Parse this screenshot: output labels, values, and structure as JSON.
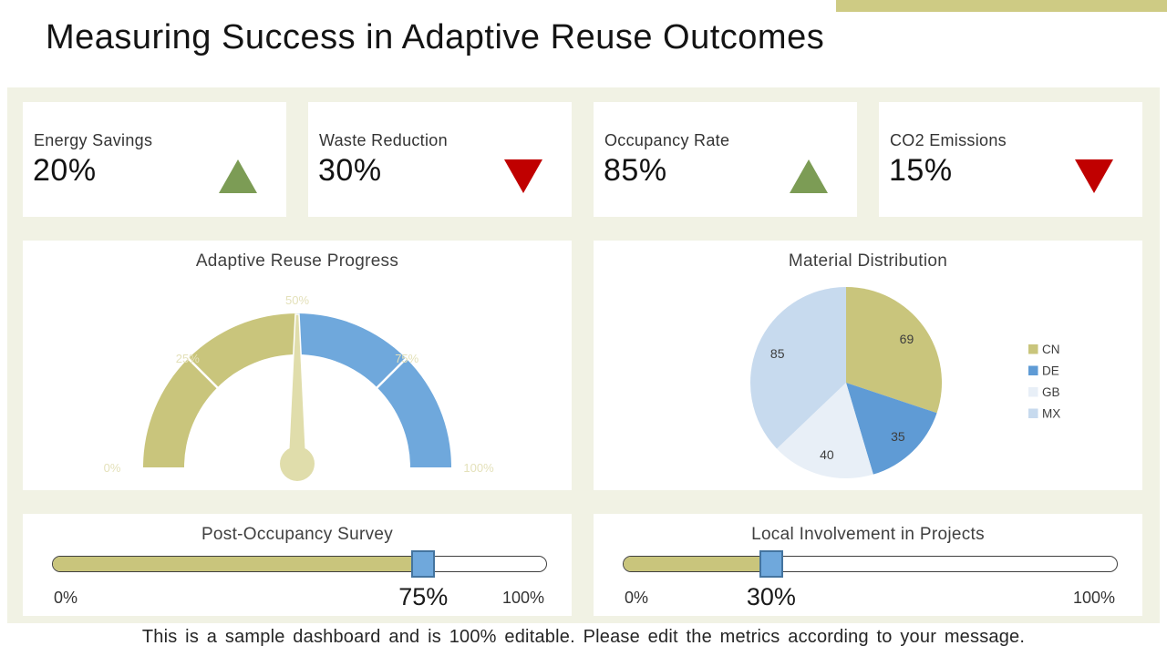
{
  "page": {
    "title": "Measuring Success in Adaptive Reuse Outcomes",
    "footer": "This is a sample dashboard and is 100% editable. Please edit the metrics according to your message."
  },
  "colors": {
    "accent_khaki": "#c9c57c",
    "accent_bar": "#cecb84",
    "accent_blue": "#6fa8dc",
    "panel_background": "#f1f2e4",
    "trend_up_green": "#7c9c55",
    "trend_down_red": "#c00000",
    "gauge_needle": "#e0ddab",
    "gauge_tick_text": "#e4e1ba"
  },
  "kpis": [
    {
      "label": "Energy Savings",
      "value": "20%",
      "trend": "up"
    },
    {
      "label": "Waste Reduction",
      "value": "30%",
      "trend": "down"
    },
    {
      "label": "Occupancy Rate",
      "value": "85%",
      "trend": "up"
    },
    {
      "label": "CO2 Emissions",
      "value": "15%",
      "trend": "down"
    }
  ],
  "chart_data": [
    {
      "type": "gauge",
      "title": "Adaptive Reuse Progress",
      "min": 0,
      "max": 100,
      "needle_value": 50,
      "tick_labels": [
        "0%",
        "25%",
        "50%",
        "75%",
        "100%"
      ],
      "segments": [
        {
          "from": 0,
          "to": 50,
          "color": "#c9c57c"
        },
        {
          "from": 50,
          "to": 100,
          "color": "#6fa8dc"
        }
      ]
    },
    {
      "type": "pie",
      "title": "Material Distribution",
      "categories": [
        "CN",
        "DE",
        "GB",
        "MX"
      ],
      "values": [
        69,
        35,
        40,
        85
      ],
      "colors": [
        "#c9c57c",
        "#5f9bd5",
        "#e8eff7",
        "#c7daee"
      ],
      "data_labels": [
        "69",
        "35",
        "40",
        "85"
      ],
      "legend_position": "right",
      "start_angle_deg": 0,
      "direction": "clockwise"
    },
    {
      "type": "slider",
      "title": "Post-Occupancy Survey",
      "value": 75,
      "min": 0,
      "max": 100,
      "min_label": "0%",
      "max_label": "100%",
      "value_label": "75%"
    },
    {
      "type": "slider",
      "title": "Local Involvement in Projects",
      "value": 30,
      "min": 0,
      "max": 100,
      "min_label": "0%",
      "max_label": "100%",
      "value_label": "30%"
    }
  ]
}
